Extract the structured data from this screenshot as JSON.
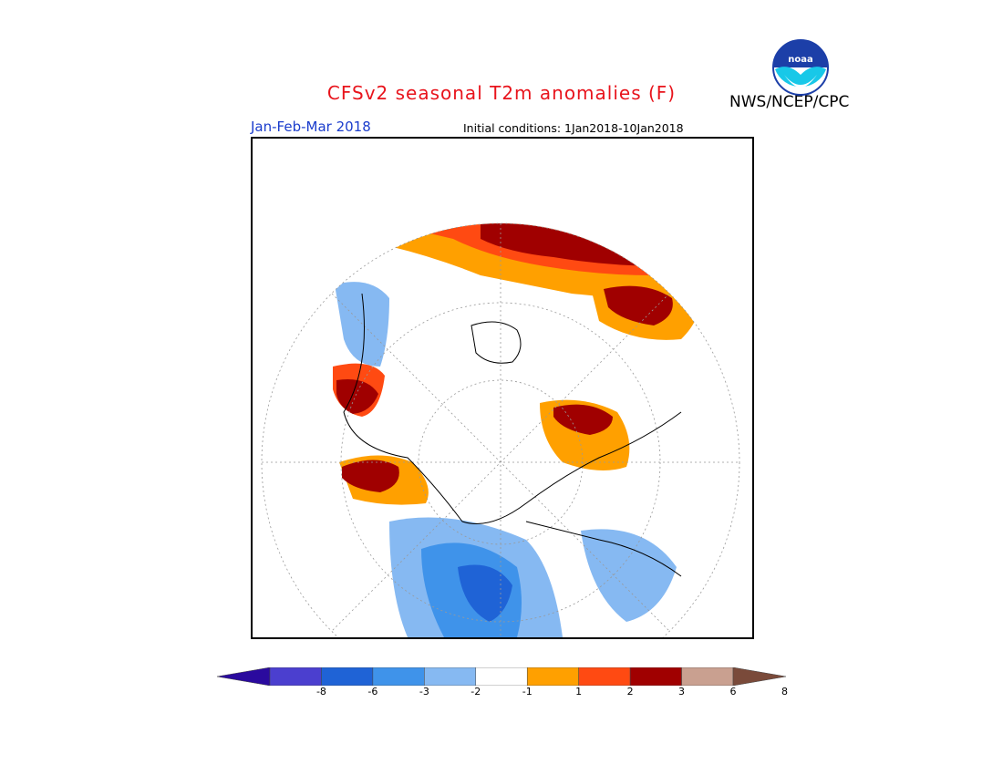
{
  "title": "CFSv2 seasonal T2m anomalies (F)",
  "agency": "NWS/NCEP/CPC",
  "period": "Jan-Feb-Mar 2018",
  "initial_conditions": "Initial conditions: 1Jan2018-10Jan2018",
  "colorbar": {
    "ticks": [
      "-8",
      "-6",
      "-3",
      "-2",
      "-1",
      "1",
      "2",
      "3",
      "6",
      "8"
    ],
    "colors": [
      "#2a0a9e",
      "#4b3fcf",
      "#1f63d6",
      "#3f93ea",
      "#86b9f2",
      "#ffffff",
      "#ffa000",
      "#ff4a12",
      "#a00000",
      "#c9a090",
      "#7a4a3a"
    ]
  }
}
